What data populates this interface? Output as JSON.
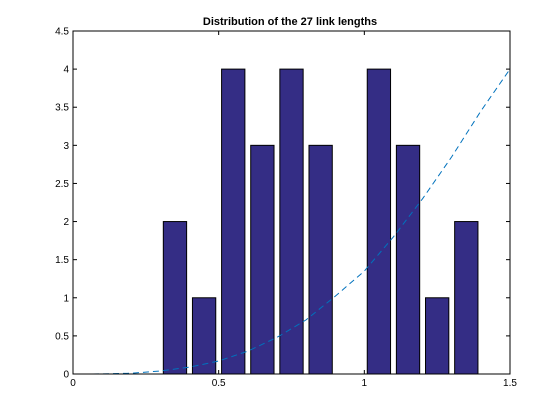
{
  "chart_data": {
    "type": "bar",
    "title": "Distribution of the 27 link lengths",
    "xlabel": "",
    "ylabel": "",
    "xlim": [
      0,
      1.5
    ],
    "ylim": [
      0,
      4.5
    ],
    "grid": false,
    "bar_color": "#342d85",
    "bar_width": 0.08,
    "x_ticks": [
      "0",
      "0.5",
      "1",
      "1.5"
    ],
    "y_ticks": [
      "0",
      "0.5",
      "1",
      "1.5",
      "2",
      "2.5",
      "3",
      "3.5",
      "4",
      "4.5"
    ],
    "bars": [
      {
        "x": 0.35,
        "value": 2
      },
      {
        "x": 0.45,
        "value": 1
      },
      {
        "x": 0.55,
        "value": 4
      },
      {
        "x": 0.65,
        "value": 3
      },
      {
        "x": 0.75,
        "value": 4
      },
      {
        "x": 0.85,
        "value": 3
      },
      {
        "x": 0.95,
        "value": 0
      },
      {
        "x": 1.05,
        "value": 4
      },
      {
        "x": 1.15,
        "value": 3
      },
      {
        "x": 1.25,
        "value": 1
      },
      {
        "x": 1.35,
        "value": 2
      }
    ],
    "curve": {
      "style": "dashed",
      "color": "#0072bd",
      "points": [
        [
          0,
          0
        ],
        [
          0.1,
          0.001
        ],
        [
          0.2,
          0.01
        ],
        [
          0.3,
          0.04
        ],
        [
          0.4,
          0.09
        ],
        [
          0.5,
          0.17
        ],
        [
          0.6,
          0.3
        ],
        [
          0.7,
          0.48
        ],
        [
          0.8,
          0.71
        ],
        [
          0.9,
          1.02
        ],
        [
          1.0,
          1.35
        ],
        [
          1.1,
          1.8
        ],
        [
          1.2,
          2.3
        ],
        [
          1.3,
          2.85
        ],
        [
          1.4,
          3.45
        ],
        [
          1.5,
          4.0
        ]
      ]
    }
  }
}
